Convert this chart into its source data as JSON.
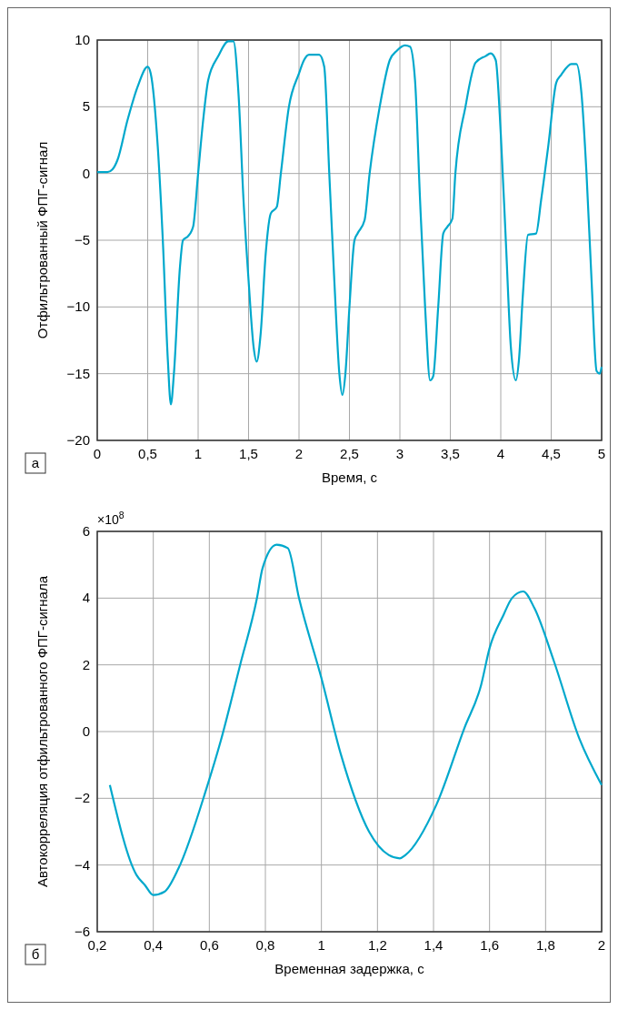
{
  "chart_data": [
    {
      "type": "line",
      "xlabel": "Время, с",
      "ylabel": "Отфильтрованный ФПГ-сигнал",
      "annotations": [
        "а"
      ],
      "grid": true,
      "xlim": [
        0,
        5
      ],
      "ylim": [
        -20,
        10
      ],
      "xticks": [
        0,
        {
          "value": 0.5,
          "label": "0,5"
        },
        1,
        {
          "value": 1.5,
          "label": "1,5"
        },
        2,
        {
          "value": 2.5,
          "label": "2,5"
        },
        3,
        {
          "value": 3.5,
          "label": "3,5"
        },
        4,
        {
          "value": 4.5,
          "label": "4,5"
        },
        5
      ],
      "yticks": [
        -20,
        -15,
        -10,
        -5,
        0,
        5,
        10
      ],
      "series": [
        {
          "color": "#00a8cc",
          "x": [
            0,
            0.1,
            0.15,
            0.2,
            0.3,
            0.4,
            0.5,
            0.53,
            0.6,
            0.65,
            0.7,
            0.73,
            0.76,
            0.82,
            0.85,
            0.9,
            0.95,
            1.0,
            1.05,
            1.1,
            1.2,
            1.3,
            1.35,
            1.4,
            1.45,
            1.5,
            1.55,
            1.58,
            1.62,
            1.67,
            1.72,
            1.78,
            1.82,
            1.9,
            2.0,
            2.05,
            2.1,
            2.2,
            2.25,
            2.3,
            2.35,
            2.4,
            2.43,
            2.46,
            2.5,
            2.55,
            2.58,
            2.65,
            2.7,
            2.8,
            2.9,
            2.97,
            3.05,
            3.1,
            3.15,
            3.2,
            3.25,
            3.3,
            3.33,
            3.38,
            3.43,
            3.47,
            3.52,
            3.55,
            3.65,
            3.75,
            3.85,
            3.9,
            3.95,
            4.0,
            4.05,
            4.1,
            4.15,
            4.18,
            4.22,
            4.27,
            4.35,
            4.4,
            4.47,
            4.55,
            4.6,
            4.7,
            4.75,
            4.8,
            4.85,
            4.9,
            4.95,
            4.98,
            5.0
          ],
          "values": [
            0.1,
            0.1,
            0.3,
            1,
            4,
            6.5,
            8,
            7.5,
            2,
            -5,
            -14,
            -17.3,
            -15,
            -7,
            -5,
            -4.7,
            -4,
            0,
            4,
            7,
            8.8,
            9.9,
            9.9,
            6,
            -2,
            -8,
            -13,
            -14.1,
            -12,
            -6,
            -3,
            -2.5,
            0,
            5,
            7.5,
            8.5,
            8.9,
            8.9,
            8,
            0,
            -8,
            -15,
            -16.6,
            -15,
            -10,
            -5,
            -4.5,
            -3.5,
            0,
            5,
            8.5,
            9.2,
            9.6,
            9.5,
            7,
            -2,
            -10,
            -15.5,
            -15.2,
            -10,
            -4.5,
            -4,
            -3.4,
            0,
            5,
            8.3,
            8.8,
            9,
            8.5,
            3,
            -5,
            -13,
            -15.5,
            -14,
            -9,
            -4.6,
            -4.5,
            -2,
            2,
            6.8,
            7.4,
            8.2,
            8.2,
            6,
            0,
            -8,
            -14.8,
            -15,
            -14.5
          ]
        }
      ]
    },
    {
      "type": "line",
      "xlabel": "Временная задержка, с",
      "ylabel": "Автокорреляция отфильтрованного ФПГ-сигнала",
      "annotations": [
        "б",
        "×10$^{8}$"
      ],
      "grid": true,
      "xlim": [
        0.2,
        2
      ],
      "ylim": [
        -6,
        6
      ],
      "xticks": [
        {
          "value": 0.2,
          "label": "0,2"
        },
        {
          "value": 0.4,
          "label": "0,4"
        },
        {
          "value": 0.6,
          "label": "0,6"
        },
        {
          "value": 0.8,
          "label": "0,8"
        },
        1,
        {
          "value": 1.2,
          "label": "1,2"
        },
        {
          "value": 1.4,
          "label": "1,4"
        },
        {
          "value": 1.6,
          "label": "1,6"
        },
        {
          "value": 1.8,
          "label": "1,8"
        },
        2
      ],
      "yticks": [
        -6,
        -4,
        -2,
        0,
        2,
        4,
        6
      ],
      "series": [
        {
          "color": "#00a8cc",
          "x": [
            0.245,
            0.34,
            0.37,
            0.4,
            0.44,
            0.49,
            0.59,
            0.64,
            0.71,
            0.77,
            0.79,
            0.84,
            0.88,
            0.92,
            1.0,
            1.07,
            1.17,
            1.24,
            1.28,
            1.3,
            1.41,
            1.51,
            1.57,
            1.6,
            1.65,
            1.68,
            1.72,
            1.76,
            1.83,
            1.92,
            2.0
          ],
          "values": [
            -1.6,
            -4.3,
            -4.6,
            -4.9,
            -4.8,
            -4.1,
            -1.7,
            -0.3,
            2,
            4,
            4.9,
            5.6,
            5.5,
            4,
            1.6,
            -0.7,
            -3,
            -3.7,
            -3.8,
            -3.7,
            -2.2,
            0.1,
            1.4,
            2.5,
            3.5,
            4,
            4.2,
            3.7,
            2.1,
            -0.2,
            -1.6
          ]
        }
      ]
    }
  ]
}
